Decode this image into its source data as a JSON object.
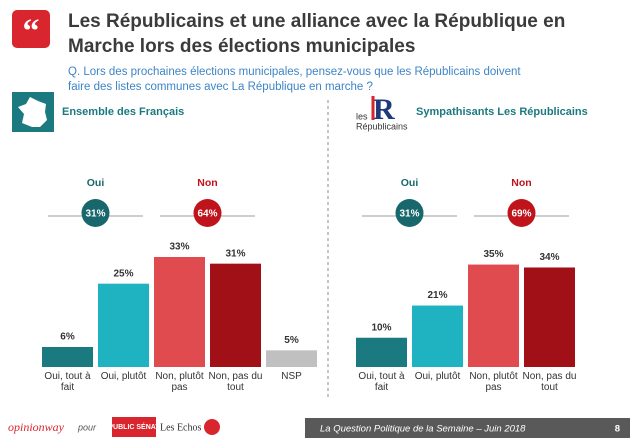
{
  "title_lines": [
    "Les Républicains et une alliance avec la République en",
    "Marche lors des élections municipales"
  ],
  "question_lines": [
    "Q. Lors des prochaines élections municipales, pensez-vous que les Républicains doivent",
    "faire des listes communes avec La République en marche ?"
  ],
  "chart_data": [
    {
      "type": "bar",
      "title": "Ensemble des Français",
      "categories": [
        "Oui, tout à fait",
        "Oui, plutôt",
        "Non, plutôt pas",
        "Non, pas du tout",
        "NSP"
      ],
      "values": [
        6,
        25,
        33,
        31,
        5
      ],
      "value_labels": [
        "6%",
        "25%",
        "33%",
        "31%",
        "5%"
      ],
      "colors": [
        "#1a7a80",
        "#1fb3c2",
        "#e04b4f",
        "#a10f17",
        "#c0c0c0"
      ],
      "ylim": [
        0,
        36
      ],
      "groups": [
        {
          "name": "Oui",
          "value": 31,
          "value_label": "31%",
          "color": "#17676d",
          "label_color": "#17676d"
        },
        {
          "name": "Non",
          "value": 64,
          "value_label": "64%",
          "color": "#c0141c",
          "label_color": "#c0141c"
        }
      ]
    },
    {
      "type": "bar",
      "title": "Sympathisants Les Républicains",
      "logo": [
        "les",
        "Républicains"
      ],
      "categories": [
        "Oui, tout à fait",
        "Oui, plutôt",
        "Non, plutôt pas",
        "Non, pas du tout"
      ],
      "values": [
        10,
        21,
        35,
        34
      ],
      "value_labels": [
        "10%",
        "21%",
        "35%",
        "34%"
      ],
      "colors": [
        "#1a7a80",
        "#1fb3c2",
        "#e04b4f",
        "#a10f17"
      ],
      "ylim": [
        0,
        41
      ],
      "groups": [
        {
          "name": "Oui",
          "value": 31,
          "value_label": "31%",
          "color": "#17676d",
          "label_color": "#17676d"
        },
        {
          "name": "Non",
          "value": 69,
          "value_label": "69%",
          "color": "#c0141c",
          "label_color": "#c0141c"
        }
      ]
    }
  ],
  "footer": {
    "brand": "opinionway",
    "pour": "pour",
    "partners": [
      "PUBLIC SÉNAT",
      "Les Echos"
    ],
    "caption": "La Question Politique de la Semaine – Juin 2018",
    "page": "8"
  }
}
